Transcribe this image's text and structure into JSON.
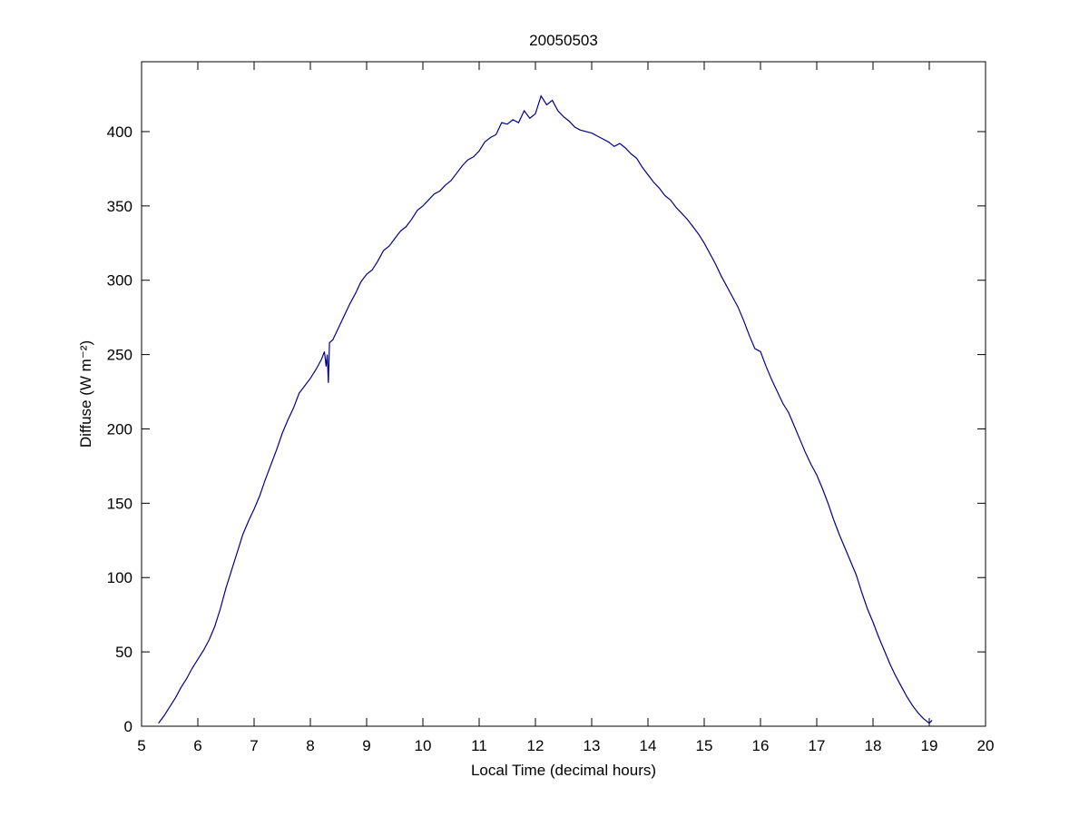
{
  "chart_data": {
    "type": "line",
    "title": "20050503",
    "xlabel": "Local Time (decimal hours)",
    "ylabel": "Diffuse (W m⁻²)",
    "x": [
      5.3,
      5.4,
      5.5,
      5.6,
      5.7,
      5.8,
      5.9,
      6.0,
      6.1,
      6.2,
      6.3,
      6.4,
      6.5,
      6.6,
      6.7,
      6.8,
      6.9,
      7.0,
      7.1,
      7.2,
      7.3,
      7.4,
      7.5,
      7.6,
      7.7,
      7.8,
      7.9,
      8.0,
      8.1,
      8.2,
      8.25,
      8.28,
      8.3,
      8.32,
      8.34,
      8.4,
      8.5,
      8.6,
      8.7,
      8.8,
      8.9,
      9.0,
      9.1,
      9.2,
      9.3,
      9.4,
      9.5,
      9.6,
      9.7,
      9.8,
      9.9,
      10.0,
      10.1,
      10.2,
      10.3,
      10.4,
      10.5,
      10.6,
      10.7,
      10.8,
      10.9,
      11.0,
      11.1,
      11.2,
      11.3,
      11.4,
      11.5,
      11.6,
      11.7,
      11.8,
      11.9,
      12.0,
      12.1,
      12.2,
      12.3,
      12.4,
      12.5,
      12.6,
      12.7,
      12.8,
      12.9,
      13.0,
      13.1,
      13.2,
      13.3,
      13.4,
      13.5,
      13.6,
      13.7,
      13.8,
      13.9,
      14.0,
      14.1,
      14.2,
      14.3,
      14.4,
      14.5,
      14.6,
      14.7,
      14.8,
      14.9,
      15.0,
      15.1,
      15.2,
      15.3,
      15.4,
      15.5,
      15.6,
      15.7,
      15.8,
      15.9,
      16.0,
      16.1,
      16.2,
      16.3,
      16.4,
      16.5,
      16.6,
      16.7,
      16.8,
      16.9,
      17.0,
      17.1,
      17.2,
      17.3,
      17.4,
      17.5,
      17.6,
      17.7,
      17.8,
      17.9,
      18.0,
      18.1,
      18.2,
      18.3,
      18.4,
      18.5,
      18.6,
      18.7,
      18.8,
      18.9,
      19.0,
      19.05
    ],
    "series": [
      {
        "name": "Diffuse",
        "color": "#00008b",
        "values": [
          2,
          7,
          13,
          19,
          26,
          32,
          39,
          45,
          51,
          58,
          67,
          79,
          93,
          105,
          117,
          129,
          138,
          146,
          155,
          166,
          176,
          186,
          197,
          206,
          214,
          224,
          229,
          234,
          240,
          247,
          252,
          242,
          250,
          231,
          258,
          260,
          268,
          276,
          284,
          291,
          299,
          304,
          307,
          313,
          320,
          323,
          328,
          333,
          336,
          341,
          347,
          350,
          354,
          358,
          360,
          364,
          367,
          372,
          377,
          381,
          383,
          387,
          393,
          396,
          398,
          406,
          405,
          408,
          406,
          414,
          409,
          412,
          424,
          418,
          421,
          414,
          410,
          407,
          403,
          401,
          400,
          399,
          397,
          395,
          393,
          390,
          392,
          389,
          385,
          382,
          376,
          371,
          366,
          362,
          357,
          354,
          349,
          345,
          341,
          336,
          331,
          325,
          318,
          311,
          303,
          296,
          289,
          282,
          273,
          263,
          254,
          252,
          242,
          233,
          225,
          217,
          211,
          202,
          193,
          184,
          176,
          169,
          160,
          150,
          139,
          129,
          120,
          111,
          102,
          90,
          79,
          70,
          60,
          51,
          42,
          34,
          27,
          20,
          14,
          9,
          5,
          2,
          4
        ]
      }
    ],
    "xlim": [
      5,
      20
    ],
    "xticks": [
      5,
      6,
      7,
      8,
      9,
      10,
      11,
      12,
      13,
      14,
      15,
      16,
      17,
      18,
      19,
      20
    ],
    "ylim": [
      0,
      447
    ],
    "yticks": [
      0,
      50,
      100,
      150,
      200,
      250,
      300,
      350,
      400
    ],
    "grid": false
  }
}
